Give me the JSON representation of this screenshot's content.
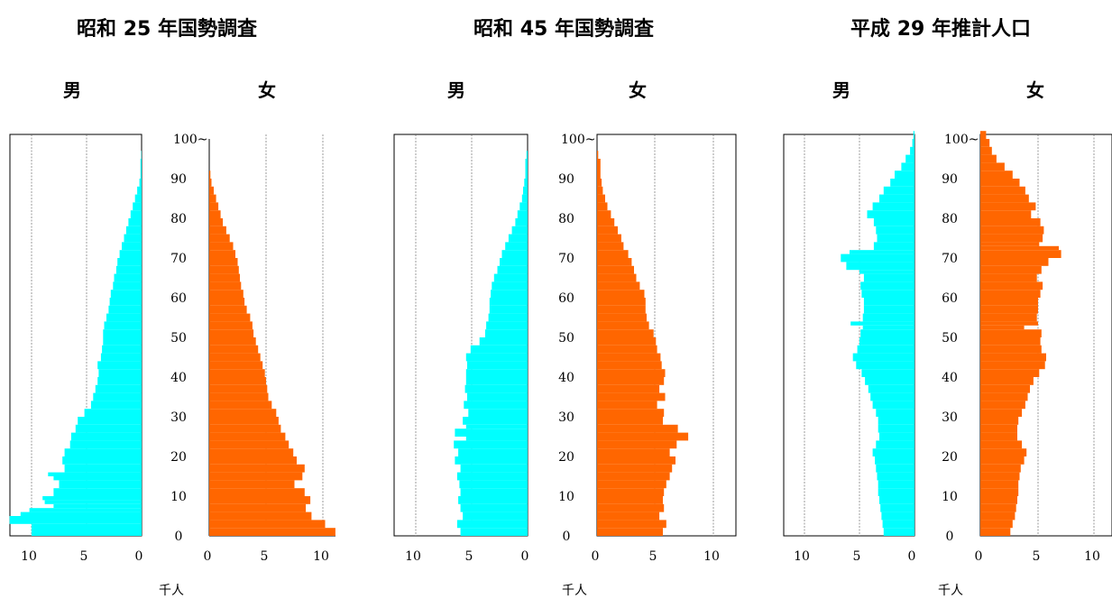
{
  "colors": {
    "male": "#00FFFF",
    "female": "#FF6600"
  },
  "chart_data": [
    {
      "type": "bar",
      "orientation": "horizontal",
      "title": "昭和 25 年国勢調査",
      "male_label": "男",
      "female_label": "女",
      "unit_label": "千人",
      "age_ticks": [
        "0",
        "10",
        "20",
        "30",
        "40",
        "50",
        "60",
        "70",
        "80",
        "90",
        "100~"
      ],
      "xlim": [
        0,
        12
      ],
      "male_ticks": [
        "10",
        "5",
        "0"
      ],
      "female_ticks": [
        "0",
        "5",
        "10"
      ],
      "male": [
        [
          0,
          10
        ],
        [
          3,
          12
        ],
        [
          5,
          11
        ],
        [
          6,
          10.2
        ],
        [
          7,
          8
        ],
        [
          8,
          8.8
        ],
        [
          9,
          9
        ],
        [
          10,
          8
        ],
        [
          12,
          7.5
        ],
        [
          14,
          8
        ],
        [
          15,
          8.5
        ],
        [
          16,
          7
        ],
        [
          18,
          7.2
        ],
        [
          20,
          7
        ],
        [
          22,
          6.5
        ],
        [
          24,
          6.4
        ],
        [
          26,
          6
        ],
        [
          28,
          5.8
        ],
        [
          30,
          5.2
        ],
        [
          32,
          4.6
        ],
        [
          34,
          4.4
        ],
        [
          36,
          4.2
        ],
        [
          38,
          4
        ],
        [
          40,
          3.9
        ],
        [
          42,
          4
        ],
        [
          44,
          3.7
        ],
        [
          46,
          3.6
        ],
        [
          48,
          3.5
        ],
        [
          50,
          3.5
        ],
        [
          52,
          3.4
        ],
        [
          54,
          3.2
        ],
        [
          56,
          3
        ],
        [
          58,
          2.9
        ],
        [
          60,
          2.8
        ],
        [
          62,
          2.6
        ],
        [
          64,
          2.5
        ],
        [
          66,
          2.3
        ],
        [
          68,
          2.2
        ],
        [
          70,
          2
        ],
        [
          72,
          1.8
        ],
        [
          74,
          1.6
        ],
        [
          76,
          1.4
        ],
        [
          78,
          1.2
        ],
        [
          80,
          1
        ],
        [
          82,
          0.8
        ],
        [
          84,
          0.6
        ],
        [
          86,
          0.4
        ],
        [
          88,
          0.2
        ],
        [
          90,
          0.1
        ],
        [
          95,
          0.03
        ]
      ],
      "female": [
        [
          0,
          11.1
        ],
        [
          2,
          10.2
        ],
        [
          4,
          9
        ],
        [
          6,
          8.5
        ],
        [
          8,
          8.9
        ],
        [
          10,
          8.4
        ],
        [
          12,
          7.5
        ],
        [
          14,
          8.2
        ],
        [
          16,
          8.4
        ],
        [
          18,
          7.7
        ],
        [
          20,
          7.4
        ],
        [
          22,
          7
        ],
        [
          24,
          6.7
        ],
        [
          26,
          6.3
        ],
        [
          28,
          6.1
        ],
        [
          30,
          5.9
        ],
        [
          32,
          5.5
        ],
        [
          34,
          5.2
        ],
        [
          36,
          5.1
        ],
        [
          38,
          5
        ],
        [
          40,
          4.9
        ],
        [
          42,
          4.7
        ],
        [
          44,
          4.5
        ],
        [
          46,
          4.3
        ],
        [
          48,
          4.1
        ],
        [
          50,
          3.9
        ],
        [
          52,
          3.8
        ],
        [
          54,
          3.6
        ],
        [
          56,
          3.3
        ],
        [
          58,
          3.1
        ],
        [
          60,
          3
        ],
        [
          62,
          2.8
        ],
        [
          64,
          2.7
        ],
        [
          66,
          2.6
        ],
        [
          68,
          2.5
        ],
        [
          70,
          2.3
        ],
        [
          72,
          2.1
        ],
        [
          74,
          1.8
        ],
        [
          76,
          1.5
        ],
        [
          78,
          1.2
        ],
        [
          80,
          1
        ],
        [
          82,
          0.8
        ],
        [
          84,
          0.6
        ],
        [
          86,
          0.4
        ],
        [
          88,
          0.2
        ],
        [
          90,
          0.1
        ]
      ]
    },
    {
      "type": "bar",
      "orientation": "horizontal",
      "title": "昭和 45 年国勢調査",
      "male_label": "男",
      "female_label": "女",
      "unit_label": "千人",
      "age_ticks": [
        "0",
        "10",
        "20",
        "30",
        "40",
        "50",
        "60",
        "70",
        "80",
        "90",
        "100~"
      ],
      "xlim": [
        0,
        12
      ],
      "male_ticks": [
        "10",
        "5",
        "0"
      ],
      "female_ticks": [
        "0",
        "5",
        "10"
      ],
      "male": [
        [
          0,
          6
        ],
        [
          2,
          6.3
        ],
        [
          4,
          5.8
        ],
        [
          6,
          6
        ],
        [
          8,
          6.2
        ],
        [
          10,
          6
        ],
        [
          12,
          6.1
        ],
        [
          14,
          6.3
        ],
        [
          16,
          6
        ],
        [
          18,
          6.5
        ],
        [
          20,
          6.2
        ],
        [
          22,
          6.6
        ],
        [
          24,
          5.5
        ],
        [
          25,
          6.5
        ],
        [
          27,
          5.5
        ],
        [
          28,
          5.8
        ],
        [
          30,
          5.3
        ],
        [
          32,
          5.7
        ],
        [
          34,
          5.4
        ],
        [
          36,
          5.6
        ],
        [
          38,
          5.5
        ],
        [
          40,
          5.5
        ],
        [
          42,
          5.4
        ],
        [
          44,
          5.5
        ],
        [
          46,
          5.1
        ],
        [
          48,
          4.3
        ],
        [
          50,
          3.8
        ],
        [
          52,
          3.7
        ],
        [
          54,
          3.5
        ],
        [
          56,
          3.4
        ],
        [
          58,
          3.4
        ],
        [
          60,
          3.3
        ],
        [
          62,
          3.2
        ],
        [
          64,
          3
        ],
        [
          66,
          2.7
        ],
        [
          68,
          2.5
        ],
        [
          70,
          2.3
        ],
        [
          72,
          2
        ],
        [
          74,
          1.7
        ],
        [
          76,
          1.4
        ],
        [
          78,
          1.1
        ],
        [
          80,
          0.9
        ],
        [
          82,
          0.7
        ],
        [
          84,
          0.5
        ],
        [
          86,
          0.4
        ],
        [
          88,
          0.3
        ],
        [
          90,
          0.2
        ],
        [
          95,
          0.1
        ]
      ],
      "female": [
        [
          0,
          5.7
        ],
        [
          2,
          6
        ],
        [
          4,
          5.4
        ],
        [
          6,
          5.8
        ],
        [
          8,
          5.7
        ],
        [
          10,
          5.8
        ],
        [
          12,
          6
        ],
        [
          14,
          6.3
        ],
        [
          16,
          6.5
        ],
        [
          18,
          6.8
        ],
        [
          20,
          6.3
        ],
        [
          22,
          6.9
        ],
        [
          24,
          7.9
        ],
        [
          26,
          7
        ],
        [
          28,
          5.7
        ],
        [
          30,
          5.8
        ],
        [
          32,
          5.2
        ],
        [
          34,
          5.9
        ],
        [
          36,
          5.4
        ],
        [
          38,
          5.8
        ],
        [
          40,
          5.9
        ],
        [
          42,
          5.6
        ],
        [
          44,
          5.5
        ],
        [
          46,
          5.2
        ],
        [
          48,
          5.1
        ],
        [
          50,
          4.9
        ],
        [
          52,
          4.5
        ],
        [
          54,
          4.3
        ],
        [
          56,
          4.2
        ],
        [
          58,
          4.2
        ],
        [
          60,
          4.1
        ],
        [
          62,
          3.7
        ],
        [
          64,
          3.4
        ],
        [
          66,
          3.2
        ],
        [
          68,
          3
        ],
        [
          70,
          2.7
        ],
        [
          72,
          2.3
        ],
        [
          74,
          2.1
        ],
        [
          76,
          1.8
        ],
        [
          78,
          1.5
        ],
        [
          80,
          1.2
        ],
        [
          82,
          0.9
        ],
        [
          84,
          0.7
        ],
        [
          86,
          0.5
        ],
        [
          88,
          0.4
        ],
        [
          90,
          0.3
        ],
        [
          95,
          0.1
        ]
      ]
    },
    {
      "type": "bar",
      "orientation": "horizontal",
      "title": "平成 29 年推計人口",
      "male_label": "男",
      "female_label": "女",
      "unit_label": "千人",
      "age_ticks": [
        "0",
        "10",
        "20",
        "30",
        "40",
        "50",
        "60",
        "70",
        "80",
        "90",
        "100~"
      ],
      "xlim": [
        0,
        12
      ],
      "male_ticks": [
        "10",
        "5",
        "0"
      ],
      "female_ticks": [
        "0",
        "5",
        "10"
      ],
      "male": [
        [
          0,
          2.8
        ],
        [
          2,
          2.9
        ],
        [
          4,
          3
        ],
        [
          6,
          3.1
        ],
        [
          8,
          3.2
        ],
        [
          10,
          3.3
        ],
        [
          12,
          3.3
        ],
        [
          14,
          3.4
        ],
        [
          16,
          3.5
        ],
        [
          18,
          3.6
        ],
        [
          20,
          3.8
        ],
        [
          22,
          3.5
        ],
        [
          24,
          3.2
        ],
        [
          26,
          3.3
        ],
        [
          28,
          3.3
        ],
        [
          30,
          3.5
        ],
        [
          32,
          3.8
        ],
        [
          34,
          4
        ],
        [
          36,
          4.2
        ],
        [
          38,
          4.5
        ],
        [
          40,
          4.8
        ],
        [
          42,
          5.3
        ],
        [
          44,
          5.6
        ],
        [
          46,
          5.2
        ],
        [
          48,
          5
        ],
        [
          50,
          4.9
        ],
        [
          52,
          4.7
        ],
        [
          53,
          5.8
        ],
        [
          54,
          4.7
        ],
        [
          56,
          4.6
        ],
        [
          58,
          4.6
        ],
        [
          60,
          4.8
        ],
        [
          62,
          4.9
        ],
        [
          64,
          4.6
        ],
        [
          66,
          5
        ],
        [
          67,
          6.2
        ],
        [
          69,
          6.7
        ],
        [
          71,
          5.9
        ],
        [
          72,
          3.7
        ],
        [
          74,
          3.4
        ],
        [
          76,
          3.5
        ],
        [
          78,
          3.7
        ],
        [
          80,
          4.3
        ],
        [
          82,
          3.8
        ],
        [
          84,
          3.2
        ],
        [
          86,
          2.8
        ],
        [
          88,
          2.2
        ],
        [
          90,
          1.8
        ],
        [
          92,
          1.2
        ],
        [
          94,
          0.8
        ],
        [
          96,
          0.4
        ],
        [
          98,
          0.2
        ],
        [
          100,
          0.1
        ]
      ],
      "female": [
        [
          0,
          2.6
        ],
        [
          2,
          2.8
        ],
        [
          4,
          3
        ],
        [
          6,
          3.1
        ],
        [
          8,
          3.2
        ],
        [
          10,
          3.3
        ],
        [
          12,
          3.3
        ],
        [
          14,
          3.4
        ],
        [
          16,
          3.5
        ],
        [
          18,
          3.8
        ],
        [
          20,
          4
        ],
        [
          22,
          3.6
        ],
        [
          24,
          3.2
        ],
        [
          26,
          3.2
        ],
        [
          28,
          3.3
        ],
        [
          30,
          3.6
        ],
        [
          32,
          3.9
        ],
        [
          34,
          4.1
        ],
        [
          36,
          4.3
        ],
        [
          38,
          4.6
        ],
        [
          40,
          5.1
        ],
        [
          42,
          5.6
        ],
        [
          44,
          5.7
        ],
        [
          46,
          5.3
        ],
        [
          48,
          5.2
        ],
        [
          50,
          5.3
        ],
        [
          52,
          3.8
        ],
        [
          53,
          5
        ],
        [
          54,
          4.9
        ],
        [
          56,
          5
        ],
        [
          58,
          5
        ],
        [
          60,
          5.2
        ],
        [
          62,
          5.4
        ],
        [
          64,
          4.9
        ],
        [
          66,
          5.3
        ],
        [
          68,
          5.9
        ],
        [
          70,
          7
        ],
        [
          72,
          6.8
        ],
        [
          73,
          5.1
        ],
        [
          74,
          5.4
        ],
        [
          76,
          5.5
        ],
        [
          78,
          5.2
        ],
        [
          80,
          4.4
        ],
        [
          82,
          4.8
        ],
        [
          84,
          4.2
        ],
        [
          86,
          3.9
        ],
        [
          88,
          3.4
        ],
        [
          90,
          2.8
        ],
        [
          92,
          2.1
        ],
        [
          94,
          1.4
        ],
        [
          96,
          1
        ],
        [
          98,
          0.8
        ],
        [
          100,
          0.5
        ]
      ]
    }
  ]
}
